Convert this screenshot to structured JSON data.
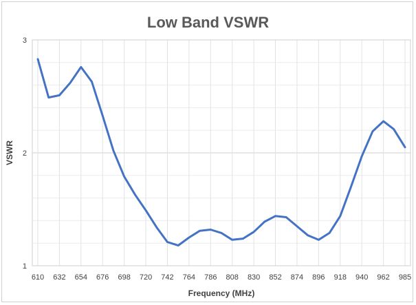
{
  "chart_data": {
    "type": "line",
    "title": "Low Band VSWR",
    "xlabel": "Frequency (MHz)",
    "ylabel": "VSWR",
    "x_tick_labels": [
      "610",
      "632",
      "654",
      "676",
      "698",
      "720",
      "742",
      "764",
      "786",
      "808",
      "830",
      "852",
      "874",
      "896",
      "918",
      "940",
      "962",
      "985"
    ],
    "y_tick_labels": [
      "1",
      "2",
      "3"
    ],
    "ylim": [
      1,
      3
    ],
    "xlim": [
      610,
      985
    ],
    "grid": true,
    "line_color": "#4472c4",
    "series": [
      {
        "x": [
          610,
          621,
          632,
          643,
          654,
          665,
          676,
          687,
          698,
          709,
          720,
          731,
          742,
          753,
          764,
          775,
          786,
          797,
          808,
          819,
          830,
          841,
          852,
          863,
          874,
          885,
          896,
          907,
          918,
          929,
          940,
          951,
          962,
          973,
          985
        ],
        "values": [
          2.83,
          2.49,
          2.51,
          2.62,
          2.76,
          2.63,
          2.33,
          2.02,
          1.79,
          1.63,
          1.49,
          1.34,
          1.21,
          1.18,
          1.25,
          1.31,
          1.32,
          1.29,
          1.23,
          1.24,
          1.3,
          1.39,
          1.44,
          1.43,
          1.35,
          1.27,
          1.23,
          1.29,
          1.44,
          1.7,
          1.97,
          2.19,
          2.28,
          2.21,
          2.05
        ]
      }
    ]
  }
}
